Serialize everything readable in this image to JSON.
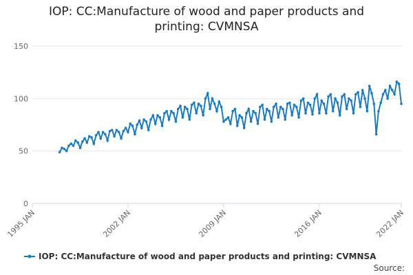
{
  "chart_data": {
    "type": "line",
    "title": "IOP: CC:Manufacture of wood and paper products and printing: CVMNSA",
    "source": "Source:",
    "x": [
      "1997 JAN",
      "1997 MAR",
      "1997 MAY",
      "1997 JUL",
      "1997 SEP",
      "1997 NOV",
      "1998 JAN",
      "1998 MAR",
      "1998 MAY",
      "1998 JUL",
      "1998 SEP",
      "1998 NOV",
      "1999 JAN",
      "1999 MAR",
      "1999 MAY",
      "1999 JUL",
      "1999 SEP",
      "1999 NOV",
      "2000 JAN",
      "2000 MAR",
      "2000 MAY",
      "2000 JUL",
      "2000 SEP",
      "2000 NOV",
      "2001 JAN",
      "2001 MAR",
      "2001 MAY",
      "2001 JUL",
      "2001 SEP",
      "2001 NOV",
      "2002 JAN",
      "2002 MAR",
      "2002 MAY",
      "2002 JUL",
      "2002 SEP",
      "2002 NOV",
      "2003 JAN",
      "2003 MAR",
      "2003 MAY",
      "2003 JUL",
      "2003 SEP",
      "2003 NOV",
      "2004 JAN",
      "2004 MAR",
      "2004 MAY",
      "2004 JUL",
      "2004 SEP",
      "2004 NOV",
      "2005 JAN",
      "2005 MAR",
      "2005 MAY",
      "2005 JUL",
      "2005 SEP",
      "2005 NOV",
      "2006 JAN",
      "2006 MAR",
      "2006 MAY",
      "2006 JUL",
      "2006 SEP",
      "2006 NOV",
      "2007 JAN",
      "2007 MAR",
      "2007 MAY",
      "2007 JUL",
      "2007 SEP",
      "2007 NOV",
      "2008 JAN",
      "2008 MAR",
      "2008 MAY",
      "2008 JUL",
      "2008 SEP",
      "2008 NOV",
      "2009 JAN",
      "2009 MAR",
      "2009 MAY",
      "2009 JUL",
      "2009 SEP",
      "2009 NOV",
      "2010 JAN",
      "2010 MAR",
      "2010 MAY",
      "2010 JUL",
      "2010 SEP",
      "2010 NOV",
      "2011 JAN",
      "2011 MAR",
      "2011 MAY",
      "2011 JUL",
      "2011 SEP",
      "2011 NOV",
      "2012 JAN",
      "2012 MAR",
      "2012 MAY",
      "2012 JUL",
      "2012 SEP",
      "2012 NOV",
      "2013 JAN",
      "2013 MAR",
      "2013 MAY",
      "2013 JUL",
      "2013 SEP",
      "2013 NOV",
      "2014 JAN",
      "2014 MAR",
      "2014 MAY",
      "2014 JUL",
      "2014 SEP",
      "2014 NOV",
      "2015 JAN",
      "2015 MAR",
      "2015 MAY",
      "2015 JUL",
      "2015 SEP",
      "2015 NOV",
      "2016 JAN",
      "2016 MAR",
      "2016 MAY",
      "2016 JUL",
      "2016 SEP",
      "2016 NOV",
      "2017 JAN",
      "2017 MAR",
      "2017 MAY",
      "2017 JUL",
      "2017 SEP",
      "2017 NOV",
      "2018 JAN",
      "2018 MAR",
      "2018 MAY",
      "2018 JUL",
      "2018 SEP",
      "2018 NOV",
      "2019 JAN",
      "2019 MAR",
      "2019 MAY",
      "2019 JUL",
      "2019 SEP",
      "2019 NOV",
      "2020 JAN",
      "2020 MAR",
      "2020 MAY",
      "2020 JUL",
      "2020 SEP",
      "2020 NOV",
      "2021 JAN",
      "2021 MAR",
      "2021 MAY",
      "2021 JUL",
      "2021 SEP",
      "2021 NOV",
      "2022 JAN"
    ],
    "series": [
      {
        "name": "IOP: CC:Manufacture of wood and paper products and printing: CVMNSA",
        "color": "#1a7bbf",
        "values": [
          49,
          53,
          52,
          50,
          55,
          57,
          55,
          60,
          58,
          53,
          59,
          62,
          58,
          64,
          63,
          57,
          65,
          68,
          62,
          68,
          66,
          60,
          69,
          70,
          64,
          70,
          68,
          62,
          69,
          72,
          68,
          76,
          74,
          66,
          75,
          79,
          72,
          80,
          78,
          70,
          80,
          84,
          76,
          84,
          82,
          74,
          86,
          88,
          80,
          88,
          86,
          78,
          90,
          93,
          82,
          92,
          90,
          80,
          94,
          96,
          86,
          95,
          93,
          84,
          100,
          105,
          90,
          100,
          95,
          88,
          97,
          92,
          78,
          80,
          82,
          76,
          88,
          90,
          74,
          84,
          82,
          72,
          86,
          90,
          78,
          88,
          86,
          76,
          92,
          94,
          80,
          90,
          88,
          78,
          92,
          95,
          82,
          92,
          90,
          80,
          95,
          96,
          84,
          94,
          92,
          82,
          98,
          100,
          86,
          96,
          94,
          85,
          100,
          104,
          86,
          98,
          95,
          86,
          102,
          104,
          88,
          100,
          96,
          84,
          102,
          104,
          90,
          100,
          98,
          86,
          104,
          106,
          92,
          108,
          100,
          88,
          112,
          105,
          95,
          66,
          88,
          96,
          104,
          108,
          100,
          112,
          108,
          104,
          116,
          114,
          95
        ]
      }
    ],
    "xlim": [
      "1995 JAN",
      "2022 JAN"
    ],
    "xticks": [
      "1995 JAN",
      "2002 JAN",
      "2009 JAN",
      "2016 JAN",
      "2022 JAN"
    ],
    "ylim": [
      0,
      150
    ],
    "yticks": [
      0,
      50,
      100,
      150
    ],
    "grid": true,
    "legend": "bottom"
  }
}
